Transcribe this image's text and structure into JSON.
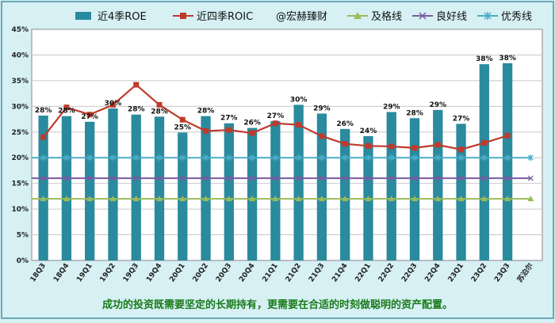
{
  "chart_data": {
    "type": "bar+line",
    "categories": [
      "18Q3",
      "18Q4",
      "19Q1",
      "19Q2",
      "19Q3",
      "19Q4",
      "20Q1",
      "20Q2",
      "20Q3",
      "20Q4",
      "21Q1",
      "21Q2",
      "21Q3",
      "21Q4",
      "22Q1",
      "22Q2",
      "22Q3",
      "22Q4",
      "23Q1",
      "23Q2",
      "23Q3"
    ],
    "extra_category": "苏泊尔",
    "series": [
      {
        "name": "近4季ROE",
        "type": "bar",
        "color": "#2a8a9e",
        "values": [
          28.2,
          28.1,
          27.0,
          29.6,
          28.4,
          28.0,
          24.9,
          28.1,
          26.7,
          25.8,
          27.1,
          30.3,
          28.6,
          25.6,
          24.2,
          28.9,
          27.7,
          29.3,
          26.6,
          38.2,
          38.4
        ],
        "labels": [
          "28%",
          "28%",
          "27%",
          "30%",
          "28%",
          "28%",
          "25%",
          "28%",
          "27%",
          "26%",
          "27%",
          "30%",
          "29%",
          "26%",
          "24%",
          "29%",
          "28%",
          "29%",
          "27%",
          "38%",
          "38%"
        ]
      },
      {
        "name": "近四季ROIC",
        "type": "line",
        "color": "#c0392b",
        "values": [
          24.0,
          29.8,
          28.4,
          30.3,
          34.2,
          30.3,
          27.4,
          25.2,
          25.4,
          24.8,
          26.7,
          26.4,
          24.2,
          22.7,
          22.3,
          22.2,
          21.9,
          22.5,
          21.6,
          22.9,
          24.3
        ]
      },
      {
        "name": "及格线",
        "type": "hline",
        "value": 12,
        "color": "#9bbb59"
      },
      {
        "name": "良好线",
        "type": "hline",
        "value": 16,
        "color": "#7a5aa0"
      },
      {
        "name": "优秀线",
        "type": "hline",
        "value": 20,
        "color": "#4bacc6"
      }
    ],
    "legend_extra": "@宏赫臻财",
    "ylim": [
      0,
      45
    ],
    "yticks": [
      "0%",
      "5%",
      "10%",
      "15%",
      "20%",
      "25%",
      "30%",
      "35%",
      "40%",
      "45%"
    ],
    "title": "",
    "xlabel": "",
    "ylabel": ""
  },
  "footer": "成功的投资既需要坚定的长期持有，更需要在合适的时刻做聪明的资产配置。"
}
